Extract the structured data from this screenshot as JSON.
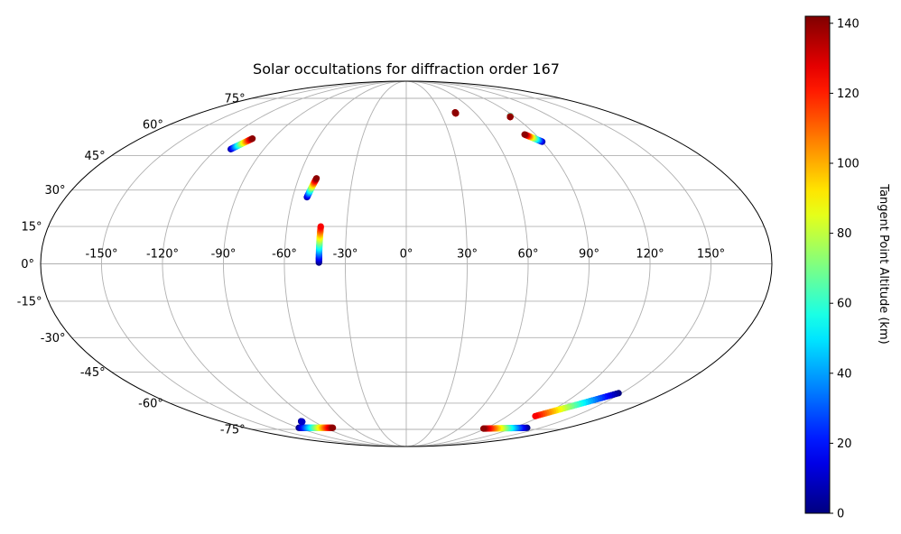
{
  "chart_data": {
    "type": "scatter",
    "projection": "mollweide",
    "title": "Solar occultations for diffraction order 167",
    "grid": true,
    "longitude_ticks": [
      "-150°",
      "-120°",
      "-90°",
      "-60°",
      "-30°",
      "0°",
      "30°",
      "60°",
      "90°",
      "120°",
      "150°"
    ],
    "longitude_values": [
      -150,
      -120,
      -90,
      -60,
      -30,
      0,
      30,
      60,
      90,
      120,
      150
    ],
    "latitude_ticks": [
      "75°",
      "60°",
      "45°",
      "30°",
      "15°",
      "0°",
      "-15°",
      "-30°",
      "-45°",
      "-60°",
      "-75°"
    ],
    "latitude_values": [
      75,
      60,
      45,
      30,
      15,
      0,
      -15,
      -30,
      -45,
      -60,
      -75
    ],
    "colorbar": {
      "label": "Tangent Point Altitude (km)",
      "colormap": "jet",
      "range": [
        0,
        142
      ],
      "ticks": [
        "0",
        "20",
        "40",
        "60",
        "80",
        "100",
        "120",
        "140"
      ],
      "tick_values": [
        0,
        20,
        40,
        60,
        80,
        100,
        120,
        140
      ]
    },
    "series": [
      {
        "lon_start": -111,
        "lat_start": 48,
        "lon_end": -104,
        "lat_end": 53,
        "alt_start": 5,
        "alt_end": 140
      },
      {
        "lon_start": -52.5,
        "lat_start": 27,
        "lon_end": -50,
        "lat_end": 35,
        "alt_start": 5,
        "alt_end": 140
      },
      {
        "lon_start": -43,
        "lat_start": 0.5,
        "lon_end": -43,
        "lat_end": 15,
        "alt_start": 0,
        "alt_end": 125
      },
      {
        "lon_start": 43,
        "lat_start": 66,
        "lon_end": 43,
        "lat_end": 66.5,
        "alt_start": 135,
        "alt_end": 140
      },
      {
        "lon_start": 87,
        "lat_start": 64.5,
        "lon_end": 86,
        "lat_end": 64,
        "alt_start": 20,
        "alt_end": 140
      },
      {
        "lon_start": 90,
        "lat_start": 51.5,
        "lon_end": 82.5,
        "lat_end": 55,
        "alt_start": 5,
        "alt_end": 140
      },
      {
        "lon_start": 148,
        "lat_start": -55,
        "lon_end": 115,
        "lat_end": -67,
        "alt_start": 0,
        "alt_end": 125
      },
      {
        "lon_start": 135,
        "lat_start": -74,
        "lon_end": 88,
        "lat_end": -74.5,
        "alt_start": 0,
        "alt_end": 140
      },
      {
        "lon_start": -120,
        "lat_start": -74,
        "lon_end": -82,
        "lat_end": -74,
        "alt_start": 0,
        "alt_end": 140
      },
      {
        "lon_start": -102,
        "lat_start": -70,
        "lon_end": -102,
        "lat_end": -70.3,
        "alt_start": 0,
        "alt_end": 10
      }
    ]
  }
}
